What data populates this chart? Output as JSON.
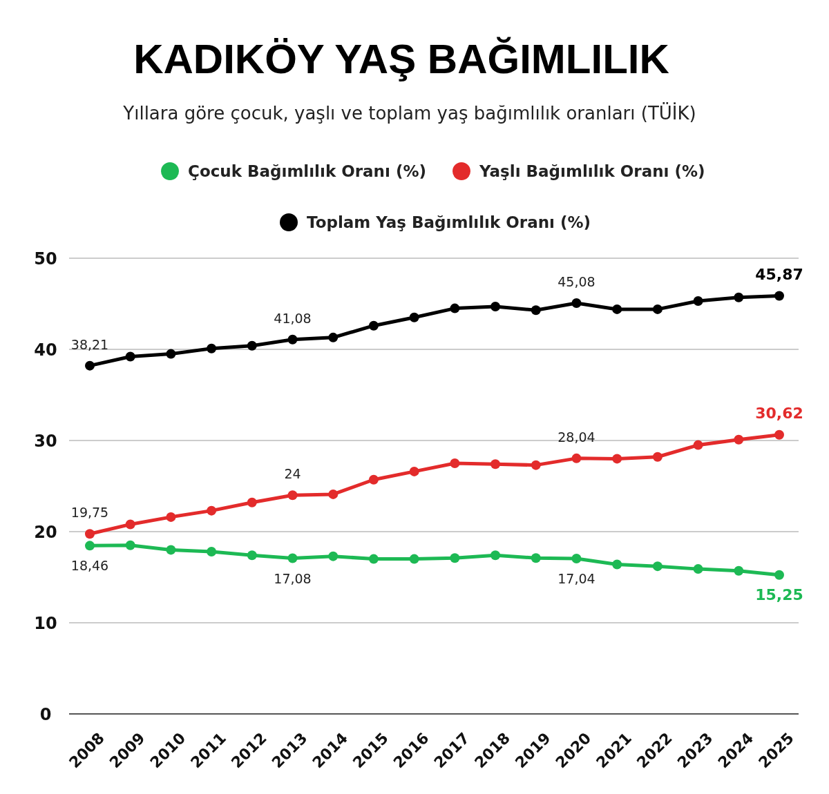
{
  "chart_data": {
    "type": "line",
    "title": "KADIKÖY YAŞ BAĞIMLILIK",
    "subtitle": "Yıllara göre  çocuk, yaşlı ve toplam yaş bağımlılık oranları (TÜİK)",
    "categories": [
      "2008",
      "2009",
      "2010",
      "2011",
      "2012",
      "2013",
      "2014",
      "2015",
      "2016",
      "2017",
      "2018",
      "2019",
      "2020",
      "2021",
      "2022",
      "2023",
      "2024",
      "2025"
    ],
    "series": [
      {
        "name": "Çocuk Bağımlılık Oranı (%)",
        "color": "#1db954",
        "values": [
          18.46,
          18.5,
          18.0,
          17.8,
          17.4,
          17.08,
          17.3,
          17.0,
          17.0,
          17.1,
          17.4,
          17.1,
          17.04,
          16.4,
          16.2,
          15.9,
          15.7,
          15.25
        ],
        "value_labels": [
          "18,46",
          null,
          null,
          null,
          null,
          "17,08",
          null,
          null,
          null,
          null,
          null,
          null,
          "17,04",
          null,
          null,
          null,
          null,
          "15,25"
        ]
      },
      {
        "name": "Yaşlı Bağımlılık Oranı (%)",
        "color": "#e32b2b",
        "values": [
          19.75,
          20.8,
          21.6,
          22.3,
          23.2,
          24,
          24.1,
          25.7,
          26.6,
          27.5,
          27.4,
          27.3,
          28.04,
          28.0,
          28.2,
          29.5,
          30.1,
          30.62
        ],
        "value_labels": [
          "19,75",
          null,
          null,
          null,
          null,
          "24",
          null,
          null,
          null,
          null,
          null,
          null,
          "28,04",
          null,
          null,
          null,
          null,
          "30,62"
        ]
      },
      {
        "name": "Toplam Yaş Bağımlılık Oranı (%)",
        "color": "#000000",
        "values": [
          38.21,
          39.2,
          39.5,
          40.1,
          40.4,
          41.08,
          41.3,
          42.6,
          43.5,
          44.5,
          44.7,
          44.3,
          45.08,
          44.4,
          44.4,
          45.3,
          45.7,
          45.87
        ],
        "value_labels": [
          "38,21",
          null,
          null,
          null,
          null,
          "41,08",
          null,
          null,
          null,
          null,
          null,
          null,
          "45,08",
          null,
          null,
          null,
          null,
          "45,87"
        ]
      }
    ],
    "ylim": [
      0,
      50
    ],
    "yticks": [
      0,
      10,
      20,
      30,
      40,
      50
    ],
    "grid": "y",
    "legend": "top",
    "marker": "circle",
    "line_style": "solid"
  }
}
